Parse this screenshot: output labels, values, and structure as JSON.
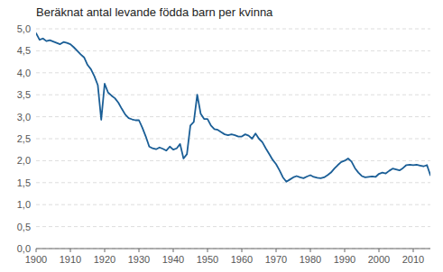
{
  "chart_data": {
    "type": "line",
    "title": "Beräknat antal levande födda barn per kvinna",
    "color": "#1a5e96",
    "grid": true,
    "x": [
      1900,
      1901,
      1902,
      1903,
      1904,
      1905,
      1906,
      1907,
      1908,
      1909,
      1910,
      1911,
      1912,
      1913,
      1914,
      1915,
      1916,
      1917,
      1918,
      1919,
      1920,
      1921,
      1922,
      1923,
      1924,
      1925,
      1926,
      1927,
      1928,
      1929,
      1930,
      1931,
      1932,
      1933,
      1934,
      1935,
      1936,
      1937,
      1938,
      1939,
      1940,
      1941,
      1942,
      1943,
      1944,
      1945,
      1946,
      1947,
      1948,
      1949,
      1950,
      1951,
      1952,
      1953,
      1954,
      1955,
      1956,
      1957,
      1958,
      1959,
      1960,
      1961,
      1962,
      1963,
      1964,
      1965,
      1966,
      1967,
      1968,
      1969,
      1970,
      1971,
      1972,
      1973,
      1974,
      1975,
      1976,
      1977,
      1978,
      1979,
      1980,
      1981,
      1982,
      1983,
      1984,
      1985,
      1986,
      1987,
      1988,
      1989,
      1990,
      1991,
      1992,
      1993,
      1994,
      1995,
      1996,
      1997,
      1998,
      1999,
      2000,
      2001,
      2002,
      2003,
      2004,
      2005,
      2006,
      2007,
      2008,
      2009,
      2010,
      2011,
      2012,
      2013,
      2014,
      2015
    ],
    "values": [
      4.9,
      4.75,
      4.78,
      4.72,
      4.74,
      4.71,
      4.68,
      4.65,
      4.7,
      4.68,
      4.65,
      4.58,
      4.5,
      4.42,
      4.35,
      4.18,
      4.08,
      3.92,
      3.72,
      2.93,
      3.75,
      3.55,
      3.48,
      3.42,
      3.32,
      3.18,
      3.05,
      2.97,
      2.94,
      2.92,
      2.92,
      2.75,
      2.55,
      2.32,
      2.28,
      2.26,
      2.3,
      2.27,
      2.23,
      2.32,
      2.25,
      2.28,
      2.38,
      2.05,
      2.15,
      2.8,
      2.88,
      3.5,
      3.07,
      2.95,
      2.95,
      2.8,
      2.72,
      2.7,
      2.65,
      2.6,
      2.58,
      2.6,
      2.58,
      2.55,
      2.55,
      2.6,
      2.57,
      2.5,
      2.62,
      2.5,
      2.42,
      2.28,
      2.15,
      2.02,
      1.92,
      1.78,
      1.62,
      1.52,
      1.57,
      1.62,
      1.65,
      1.62,
      1.6,
      1.64,
      1.67,
      1.63,
      1.61,
      1.6,
      1.62,
      1.67,
      1.73,
      1.82,
      1.9,
      1.97,
      2.0,
      2.05,
      1.98,
      1.83,
      1.73,
      1.65,
      1.62,
      1.63,
      1.64,
      1.63,
      1.7,
      1.73,
      1.71,
      1.77,
      1.82,
      1.8,
      1.78,
      1.83,
      1.9,
      1.91,
      1.9,
      1.91,
      1.89,
      1.87,
      1.9,
      1.67
    ],
    "xlim": [
      1900,
      2015
    ],
    "ylim": [
      0.0,
      5.0
    ],
    "xticks": [
      1900,
      1910,
      1920,
      1930,
      1940,
      1950,
      1960,
      1970,
      1980,
      1990,
      2000,
      2010
    ],
    "yticks": [
      {
        "value": 0.0,
        "label": "0,0"
      },
      {
        "value": 0.5,
        "label": "0,5"
      },
      {
        "value": 1.0,
        "label": "1,0"
      },
      {
        "value": 1.5,
        "label": "1,5"
      },
      {
        "value": 2.0,
        "label": "2,0"
      },
      {
        "value": 2.5,
        "label": "2,5"
      },
      {
        "value": 3.0,
        "label": "3,0"
      },
      {
        "value": 3.5,
        "label": "3,5"
      },
      {
        "value": 4.0,
        "label": "4,0"
      },
      {
        "value": 4.5,
        "label": "4,5"
      },
      {
        "value": 5.0,
        "label": "5,0"
      }
    ]
  }
}
